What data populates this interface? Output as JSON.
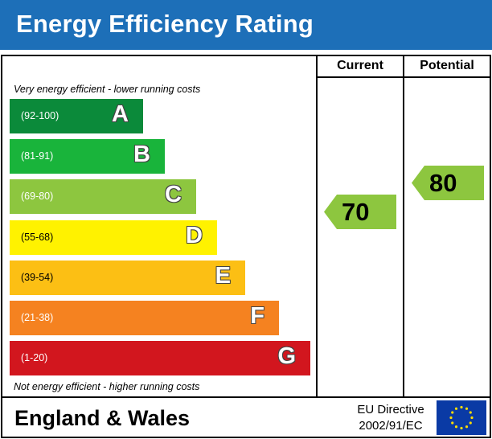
{
  "title": "Energy Efficiency Rating",
  "columns": {
    "current": "Current",
    "potential": "Potential"
  },
  "notes": {
    "top": "Very energy efficient - lower running costs",
    "bottom": "Not energy efficient - higher running costs"
  },
  "bands": [
    {
      "range": "(92-100)",
      "letter": "A",
      "color": "#0b8a3a"
    },
    {
      "range": "(81-91)",
      "letter": "B",
      "color": "#19b43b"
    },
    {
      "range": "(69-80)",
      "letter": "C",
      "color": "#8dc63f"
    },
    {
      "range": "(55-68)",
      "letter": "D",
      "color": "#fff200"
    },
    {
      "range": "(39-54)",
      "letter": "E",
      "color": "#fcbf14"
    },
    {
      "range": "(21-38)",
      "letter": "F",
      "color": "#f58220"
    },
    {
      "range": "(1-20)",
      "letter": "G",
      "color": "#d2161e"
    }
  ],
  "ratings": {
    "current": {
      "value": "70",
      "band": "C",
      "color": "#8dc63f"
    },
    "potential": {
      "value": "80",
      "band": "C",
      "color": "#8dc63f"
    }
  },
  "footer": {
    "region": "England & Wales",
    "directive_line1": "EU Directive",
    "directive_line2": "2002/91/EC"
  }
}
